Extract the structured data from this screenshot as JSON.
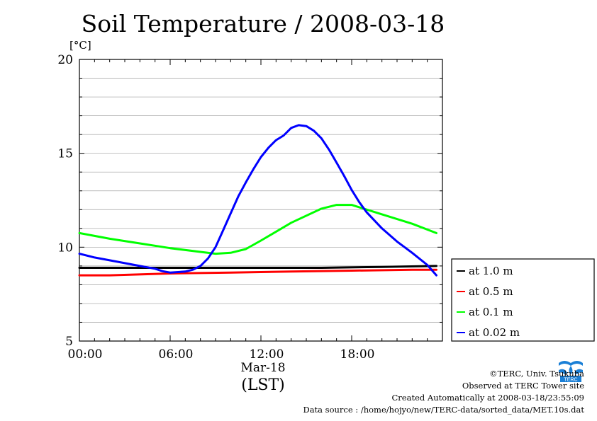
{
  "chart_data": {
    "type": "line",
    "title": "Soil Temperature / 2008-03-18",
    "ylabel": "[°C]",
    "xlabel_date": "Mar-18",
    "xlabel_tz": "(LST)",
    "xlim": [
      0,
      24
    ],
    "ylim": [
      5,
      20
    ],
    "yticks": [
      5,
      10,
      15,
      20
    ],
    "xticks": [
      {
        "value": 0,
        "label": "00:00"
      },
      {
        "value": 6,
        "label": "06:00"
      },
      {
        "value": 12,
        "label": "12:00"
      },
      {
        "value": 18,
        "label": "18:00"
      }
    ],
    "grid": "horizontal",
    "legend": "right",
    "series": [
      {
        "name": "at 1.0 m",
        "color": "#000000",
        "x": [
          0,
          4,
          8,
          12,
          16,
          20,
          23.6
        ],
        "y": [
          8.9,
          8.9,
          8.9,
          8.9,
          8.9,
          8.95,
          9.0
        ]
      },
      {
        "name": "at 0.5 m",
        "color": "#ff0000",
        "x": [
          0,
          2,
          6,
          10,
          14,
          18,
          22,
          23.6
        ],
        "y": [
          8.5,
          8.5,
          8.6,
          8.65,
          8.7,
          8.75,
          8.8,
          8.8
        ]
      },
      {
        "name": "at 0.1 m",
        "color": "#00ff00",
        "x": [
          0,
          2,
          4,
          6,
          8,
          9,
          10,
          11,
          12,
          14,
          16,
          17,
          18,
          20,
          22,
          23.6
        ],
        "y": [
          10.75,
          10.45,
          10.2,
          9.95,
          9.75,
          9.65,
          9.7,
          9.9,
          10.35,
          11.3,
          12.05,
          12.25,
          12.25,
          11.75,
          11.25,
          10.75
        ]
      },
      {
        "name": "at 0.02 m",
        "color": "#0000ff",
        "x": [
          0,
          1,
          2,
          3,
          4,
          5,
          5.5,
          6,
          7,
          7.5,
          8,
          8.5,
          9,
          9.5,
          10,
          10.5,
          11,
          11.5,
          12,
          12.5,
          13,
          13.5,
          14,
          14.5,
          15,
          15.5,
          16,
          16.5,
          17,
          17.5,
          18,
          18.5,
          19,
          20,
          21,
          22,
          23,
          23.6
        ],
        "y": [
          9.65,
          9.45,
          9.3,
          9.15,
          9.0,
          8.85,
          8.72,
          8.65,
          8.7,
          8.8,
          9.0,
          9.4,
          10.0,
          10.9,
          11.8,
          12.7,
          13.45,
          14.15,
          14.8,
          15.3,
          15.7,
          15.95,
          16.35,
          16.5,
          16.45,
          16.2,
          15.8,
          15.2,
          14.5,
          13.8,
          13.05,
          12.4,
          11.85,
          11.0,
          10.3,
          9.7,
          9.05,
          8.5
        ]
      }
    ]
  },
  "credits": {
    "copyright": "©TERC, Univ. Tsukuba",
    "observed": "Observed at TERC Tower site",
    "created": "Created Automatically at 2008-03-18/23:55:09",
    "source": "Data source : /home/hojyo/new/TERC-data/sorted_data/MET.10s.dat"
  },
  "logo": {
    "text": "TERC",
    "color": "#1a7fd6"
  }
}
